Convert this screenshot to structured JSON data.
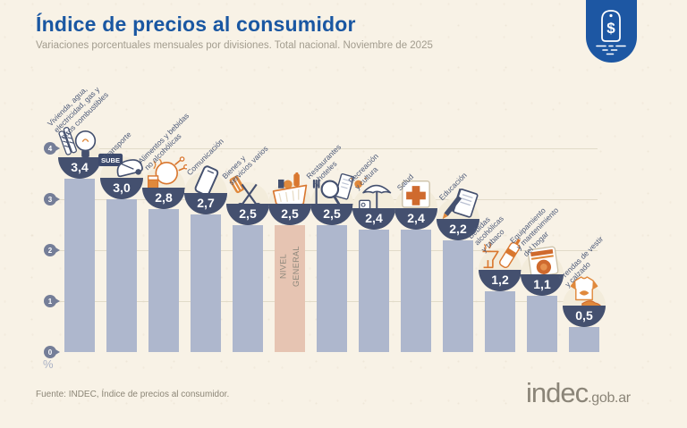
{
  "header": {
    "title": "Índice de precios al consumidor",
    "subtitle": "Variaciones porcentuales mensuales por divisiones. Total nacional. Noviembre de 2025",
    "tag_symbol": "$"
  },
  "chart_data": {
    "type": "bar",
    "title": "Índice de precios al consumidor",
    "subtitle": "Variaciones porcentuales mensuales por divisiones. Total nacional. Noviembre de 2025",
    "xlabel": "",
    "ylabel": "%",
    "ylim": [
      0,
      4
    ],
    "yticks": [
      0,
      1,
      2,
      3,
      4
    ],
    "ytick_labels": [
      "0",
      "1",
      "2",
      "3",
      "4"
    ],
    "grid": true,
    "legend": "none",
    "highlight_index": 5,
    "highlight_category": "NIVEL GENERAL",
    "highlight_display": "NIVEL\nGENERAL",
    "categories": [
      "Vivienda, agua, electricidad, gas y otros combustibles",
      "Transporte",
      "Alimentos y bebidas no alcohólicas",
      "Comunicación",
      "Bienes y servicios varios",
      "NIVEL GENERAL",
      "Restaurantes y hoteles",
      "Recreación y cultura",
      "Salud",
      "Educación",
      "Bebidas alcohólicas y tabaco",
      "Equipamiento y mantenimiento del hogar",
      "Prendas de vestir y calzado"
    ],
    "label_display": [
      "Vivienda, agua,\nelectricidad, gas y\notros combustibles",
      "Transporte",
      "Alimentos y bebidas\nno alcohólicas",
      "Comunicación",
      "Bienes y\nservicios varios",
      "",
      "Restaurantes\ny hoteles",
      "Recreación\ny cultura",
      "Salud",
      "Educación",
      "Bebidas\nalcohólicas\ny tabaco",
      "Equipamiento\ny mantenimiento\ndel hogar",
      "Prendas de vestir\ny calzado"
    ],
    "values": [
      3.4,
      3.0,
      2.8,
      2.7,
      2.5,
      2.5,
      2.5,
      2.4,
      2.4,
      2.2,
      1.2,
      1.1,
      0.5
    ],
    "value_labels": [
      "3,4",
      "3,0",
      "2,8",
      "2,7",
      "2,5",
      "2,5",
      "2,5",
      "2,4",
      "2,4",
      "2,2",
      "1,2",
      "1,1",
      "0,5"
    ],
    "icons": [
      "lightbulb-matches-icon",
      "sube-card-bus-icon",
      "chicken-drink-icon",
      "smartphone-icon",
      "scissors-comb-icon",
      "shopping-basket-icon",
      "cutlery-magnifier-icon",
      "umbrella-sun-icon",
      "first-aid-cross-icon",
      "notebook-pencil-icon",
      "wine-bottle-icon",
      "washing-machine-icon",
      "tshirt-sneaker-icon"
    ],
    "icon_texts": {
      "sube": "SUBE"
    }
  },
  "colors": {
    "background": "#f8f2e6",
    "title_blue": "#1a57a2",
    "subtitle_gray": "#a29c8e",
    "bar_blue": "#aeb7cd",
    "bar_highlight": "#e6c4b2",
    "bowl_navy": "#44506f",
    "tick_gray": "#757e98",
    "grid": "#e2dbc9",
    "label_navy": "#4d5a78",
    "accent_orange": "#d9772f",
    "tag_blue": "#1d57a3",
    "footer_gray": "#8c8677"
  },
  "footer": {
    "source": "Fuente: INDEC, Índice de precios al consumidor.",
    "logo_main": "indec",
    "logo_suffix": ".gob.ar"
  }
}
